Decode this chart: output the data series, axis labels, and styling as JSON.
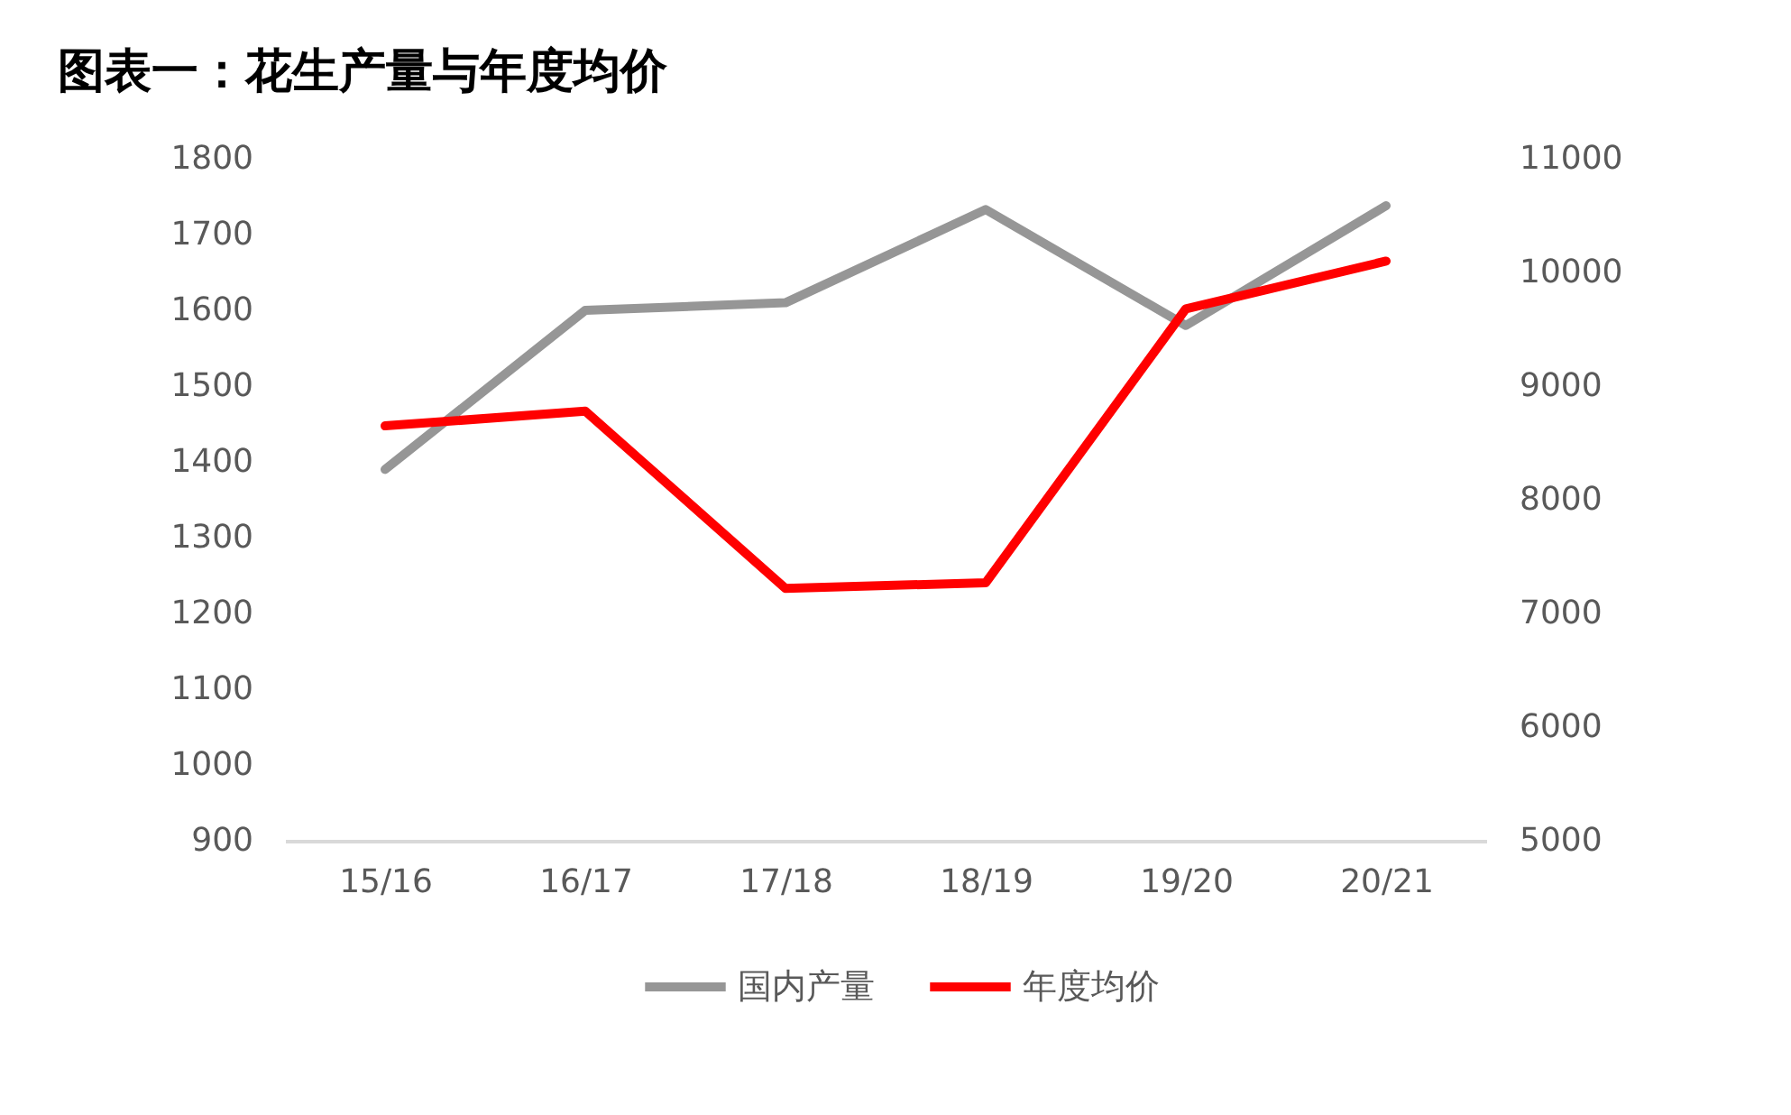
{
  "chart_data": {
    "type": "line",
    "title": "图表一：花生产量与年度均价",
    "categories": [
      "15/16",
      "16/17",
      "17/18",
      "18/19",
      "19/20",
      "20/21"
    ],
    "series": [
      {
        "name": "国内产量",
        "color": "#969696",
        "values": [
          1390,
          1600,
          1610,
          1733,
          1580,
          1738
        ],
        "axis": "y"
      },
      {
        "name": "年度均价",
        "color": "#ff0000",
        "values": [
          8650,
          8780,
          7220,
          7270,
          9680,
          10100
        ],
        "axis": "y2"
      }
    ],
    "ylim": [
      900,
      1800
    ],
    "yticks": [
      900,
      1000,
      1100,
      1200,
      1300,
      1400,
      1500,
      1600,
      1700,
      1800
    ],
    "y2lim": [
      5000,
      11000
    ],
    "y2ticks": [
      5000,
      6000,
      7000,
      8000,
      9000,
      10000,
      11000
    ],
    "grid": false,
    "legend": "bottom"
  }
}
